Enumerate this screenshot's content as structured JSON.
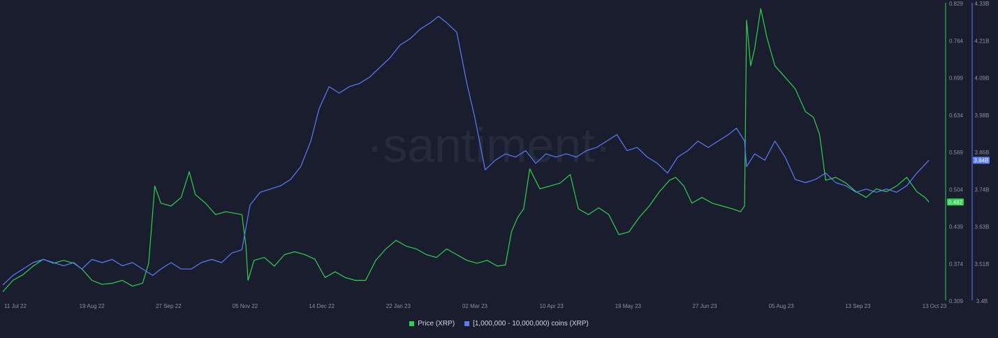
{
  "watermark": "·santiment·",
  "colors": {
    "background": "#1a1d2e",
    "price": "#2fd14f",
    "holders": "#5b7cfa",
    "axis_text": "#8a8fa3",
    "grid": "#24283a"
  },
  "chart_data": {
    "type": "line",
    "title": "",
    "xlabel": "",
    "x_start": "2022-07-11",
    "x_end": "2023-10-13",
    "x_tick_labels": [
      "11 Jul 22",
      "19 Aug 22",
      "27 Sep 22",
      "05 Nov 22",
      "14 Dec 22",
      "22 Jan 23",
      "02 Mar 23",
      "10 Apr 23",
      "19 May 23",
      "27 Jun 23",
      "05 Aug 23",
      "13 Sep 23",
      "13 Oct 23"
    ],
    "y_left": {
      "label": "Price (XRP)",
      "range": [
        0.309,
        0.829
      ],
      "tick_labels": [
        "0.829",
        "0.764",
        "0.699",
        "0.634",
        "0.569",
        "0.504",
        "0.439",
        "0.374",
        "0.309"
      ],
      "current_value_label": "0.482"
    },
    "y_right": {
      "label": "[1,000,000 - 10,000,000) coins (XRP)",
      "range": [
        3.4,
        4.33
      ],
      "tick_labels": [
        "4.33B",
        "4.21B",
        "4.09B",
        "3.98B",
        "3.86B",
        "3.74B",
        "3.63B",
        "3.51B",
        "3.4B"
      ],
      "current_value_label": "3.84B"
    },
    "legend_position": "bottom-center",
    "grid": false,
    "series": [
      {
        "name": "Price (XRP)",
        "axis": "left",
        "color": "#2fd14f",
        "points": [
          [
            "2022-07-11",
            0.325
          ],
          [
            "2022-07-16",
            0.345
          ],
          [
            "2022-07-21",
            0.355
          ],
          [
            "2022-07-26",
            0.37
          ],
          [
            "2022-07-31",
            0.382
          ],
          [
            "2022-08-05",
            0.375
          ],
          [
            "2022-08-10",
            0.38
          ],
          [
            "2022-08-15",
            0.375
          ],
          [
            "2022-08-19",
            0.365
          ],
          [
            "2022-08-24",
            0.345
          ],
          [
            "2022-08-29",
            0.338
          ],
          [
            "2022-09-03",
            0.34
          ],
          [
            "2022-09-08",
            0.345
          ],
          [
            "2022-09-13",
            0.335
          ],
          [
            "2022-09-18",
            0.34
          ],
          [
            "2022-09-21",
            0.375
          ],
          [
            "2022-09-24",
            0.51
          ],
          [
            "2022-09-27",
            0.48
          ],
          [
            "2022-10-02",
            0.475
          ],
          [
            "2022-10-07",
            0.49
          ],
          [
            "2022-10-11",
            0.535
          ],
          [
            "2022-10-14",
            0.495
          ],
          [
            "2022-10-19",
            0.48
          ],
          [
            "2022-10-24",
            0.46
          ],
          [
            "2022-10-29",
            0.465
          ],
          [
            "2022-11-03",
            0.462
          ],
          [
            "2022-11-06",
            0.46
          ],
          [
            "2022-11-08",
            0.405
          ],
          [
            "2022-11-09",
            0.345
          ],
          [
            "2022-11-12",
            0.38
          ],
          [
            "2022-11-17",
            0.385
          ],
          [
            "2022-11-22",
            0.37
          ],
          [
            "2022-11-27",
            0.39
          ],
          [
            "2022-12-02",
            0.395
          ],
          [
            "2022-12-07",
            0.39
          ],
          [
            "2022-12-12",
            0.382
          ],
          [
            "2022-12-17",
            0.35
          ],
          [
            "2022-12-22",
            0.36
          ],
          [
            "2022-12-27",
            0.35
          ],
          [
            "2023-01-01",
            0.345
          ],
          [
            "2023-01-06",
            0.345
          ],
          [
            "2023-01-11",
            0.38
          ],
          [
            "2023-01-16",
            0.4
          ],
          [
            "2023-01-21",
            0.415
          ],
          [
            "2023-01-26",
            0.405
          ],
          [
            "2023-01-31",
            0.4
          ],
          [
            "2023-02-05",
            0.39
          ],
          [
            "2023-02-10",
            0.385
          ],
          [
            "2023-02-15",
            0.4
          ],
          [
            "2023-02-20",
            0.39
          ],
          [
            "2023-02-25",
            0.38
          ],
          [
            "2023-03-02",
            0.375
          ],
          [
            "2023-03-07",
            0.38
          ],
          [
            "2023-03-12",
            0.37
          ],
          [
            "2023-03-16",
            0.372
          ],
          [
            "2023-03-19",
            0.43
          ],
          [
            "2023-03-22",
            0.455
          ],
          [
            "2023-03-25",
            0.47
          ],
          [
            "2023-03-28",
            0.54
          ],
          [
            "2023-04-02",
            0.505
          ],
          [
            "2023-04-07",
            0.51
          ],
          [
            "2023-04-12",
            0.515
          ],
          [
            "2023-04-17",
            0.53
          ],
          [
            "2023-04-21",
            0.47
          ],
          [
            "2023-04-26",
            0.46
          ],
          [
            "2023-05-01",
            0.472
          ],
          [
            "2023-05-06",
            0.46
          ],
          [
            "2023-05-11",
            0.425
          ],
          [
            "2023-05-16",
            0.43
          ],
          [
            "2023-05-21",
            0.455
          ],
          [
            "2023-05-26",
            0.475
          ],
          [
            "2023-05-31",
            0.5
          ],
          [
            "2023-06-05",
            0.52
          ],
          [
            "2023-06-08",
            0.525
          ],
          [
            "2023-06-12",
            0.51
          ],
          [
            "2023-06-16",
            0.48
          ],
          [
            "2023-06-21",
            0.49
          ],
          [
            "2023-06-26",
            0.48
          ],
          [
            "2023-07-01",
            0.475
          ],
          [
            "2023-07-06",
            0.47
          ],
          [
            "2023-07-10",
            0.465
          ],
          [
            "2023-07-12",
            0.475
          ],
          [
            "2023-07-13",
            0.8
          ],
          [
            "2023-07-15",
            0.72
          ],
          [
            "2023-07-17",
            0.75
          ],
          [
            "2023-07-20",
            0.82
          ],
          [
            "2023-07-23",
            0.77
          ],
          [
            "2023-07-27",
            0.72
          ],
          [
            "2023-08-01",
            0.7
          ],
          [
            "2023-08-06",
            0.68
          ],
          [
            "2023-08-11",
            0.64
          ],
          [
            "2023-08-15",
            0.63
          ],
          [
            "2023-08-18",
            0.6
          ],
          [
            "2023-08-21",
            0.52
          ],
          [
            "2023-08-26",
            0.525
          ],
          [
            "2023-08-31",
            0.515
          ],
          [
            "2023-09-05",
            0.5
          ],
          [
            "2023-09-10",
            0.49
          ],
          [
            "2023-09-15",
            0.505
          ],
          [
            "2023-09-20",
            0.5
          ],
          [
            "2023-09-25",
            0.51
          ],
          [
            "2023-09-30",
            0.525
          ],
          [
            "2023-10-05",
            0.5
          ],
          [
            "2023-10-09",
            0.49
          ],
          [
            "2023-10-11",
            0.482
          ]
        ]
      },
      {
        "name": "[1,000,000 - 10,000,000) coins (XRP)",
        "axis": "right",
        "color": "#5b7cfa",
        "points": [
          [
            "2022-07-11",
            3.45
          ],
          [
            "2022-07-16",
            3.48
          ],
          [
            "2022-07-21",
            3.5
          ],
          [
            "2022-07-26",
            3.52
          ],
          [
            "2022-07-31",
            3.53
          ],
          [
            "2022-08-05",
            3.52
          ],
          [
            "2022-08-10",
            3.51
          ],
          [
            "2022-08-15",
            3.52
          ],
          [
            "2022-08-19",
            3.5
          ],
          [
            "2022-08-24",
            3.53
          ],
          [
            "2022-08-29",
            3.52
          ],
          [
            "2022-09-03",
            3.53
          ],
          [
            "2022-09-08",
            3.51
          ],
          [
            "2022-09-13",
            3.52
          ],
          [
            "2022-09-18",
            3.5
          ],
          [
            "2022-09-23",
            3.48
          ],
          [
            "2022-09-27",
            3.5
          ],
          [
            "2022-10-02",
            3.52
          ],
          [
            "2022-10-07",
            3.5
          ],
          [
            "2022-10-12",
            3.5
          ],
          [
            "2022-10-17",
            3.52
          ],
          [
            "2022-10-22",
            3.53
          ],
          [
            "2022-10-27",
            3.52
          ],
          [
            "2022-11-01",
            3.55
          ],
          [
            "2022-11-06",
            3.56
          ],
          [
            "2022-11-10",
            3.7
          ],
          [
            "2022-11-15",
            3.74
          ],
          [
            "2022-11-20",
            3.75
          ],
          [
            "2022-11-25",
            3.76
          ],
          [
            "2022-11-30",
            3.78
          ],
          [
            "2022-12-05",
            3.82
          ],
          [
            "2022-12-10",
            3.9
          ],
          [
            "2022-12-14",
            4.0
          ],
          [
            "2022-12-19",
            4.07
          ],
          [
            "2022-12-24",
            4.05
          ],
          [
            "2022-12-29",
            4.07
          ],
          [
            "2023-01-03",
            4.08
          ],
          [
            "2023-01-08",
            4.1
          ],
          [
            "2023-01-13",
            4.13
          ],
          [
            "2023-01-18",
            4.16
          ],
          [
            "2023-01-23",
            4.2
          ],
          [
            "2023-01-28",
            4.22
          ],
          [
            "2023-02-02",
            4.25
          ],
          [
            "2023-02-07",
            4.27
          ],
          [
            "2023-02-11",
            4.29
          ],
          [
            "2023-02-15",
            4.27
          ],
          [
            "2023-02-20",
            4.24
          ],
          [
            "2023-02-25",
            4.08
          ],
          [
            "2023-03-01",
            3.97
          ],
          [
            "2023-03-06",
            3.81
          ],
          [
            "2023-03-11",
            3.84
          ],
          [
            "2023-03-16",
            3.86
          ],
          [
            "2023-03-21",
            3.85
          ],
          [
            "2023-03-26",
            3.87
          ],
          [
            "2023-03-31",
            3.83
          ],
          [
            "2023-04-05",
            3.86
          ],
          [
            "2023-04-10",
            3.85
          ],
          [
            "2023-04-15",
            3.86
          ],
          [
            "2023-04-20",
            3.85
          ],
          [
            "2023-04-25",
            3.87
          ],
          [
            "2023-04-30",
            3.88
          ],
          [
            "2023-05-05",
            3.9
          ],
          [
            "2023-05-10",
            3.92
          ],
          [
            "2023-05-15",
            3.87
          ],
          [
            "2023-05-20",
            3.88
          ],
          [
            "2023-05-25",
            3.85
          ],
          [
            "2023-05-30",
            3.83
          ],
          [
            "2023-06-04",
            3.8
          ],
          [
            "2023-06-09",
            3.85
          ],
          [
            "2023-06-14",
            3.87
          ],
          [
            "2023-06-19",
            3.9
          ],
          [
            "2023-06-24",
            3.88
          ],
          [
            "2023-06-29",
            3.9
          ],
          [
            "2023-07-04",
            3.92
          ],
          [
            "2023-07-08",
            3.94
          ],
          [
            "2023-07-12",
            3.9
          ],
          [
            "2023-07-13",
            3.82
          ],
          [
            "2023-07-17",
            3.86
          ],
          [
            "2023-07-22",
            3.84
          ],
          [
            "2023-07-27",
            3.9
          ],
          [
            "2023-08-01",
            3.85
          ],
          [
            "2023-08-06",
            3.78
          ],
          [
            "2023-08-11",
            3.77
          ],
          [
            "2023-08-16",
            3.78
          ],
          [
            "2023-08-21",
            3.8
          ],
          [
            "2023-08-26",
            3.77
          ],
          [
            "2023-08-31",
            3.76
          ],
          [
            "2023-09-05",
            3.74
          ],
          [
            "2023-09-10",
            3.75
          ],
          [
            "2023-09-15",
            3.74
          ],
          [
            "2023-09-20",
            3.75
          ],
          [
            "2023-09-25",
            3.74
          ],
          [
            "2023-09-30",
            3.76
          ],
          [
            "2023-10-05",
            3.8
          ],
          [
            "2023-10-11",
            3.84
          ]
        ]
      }
    ]
  }
}
